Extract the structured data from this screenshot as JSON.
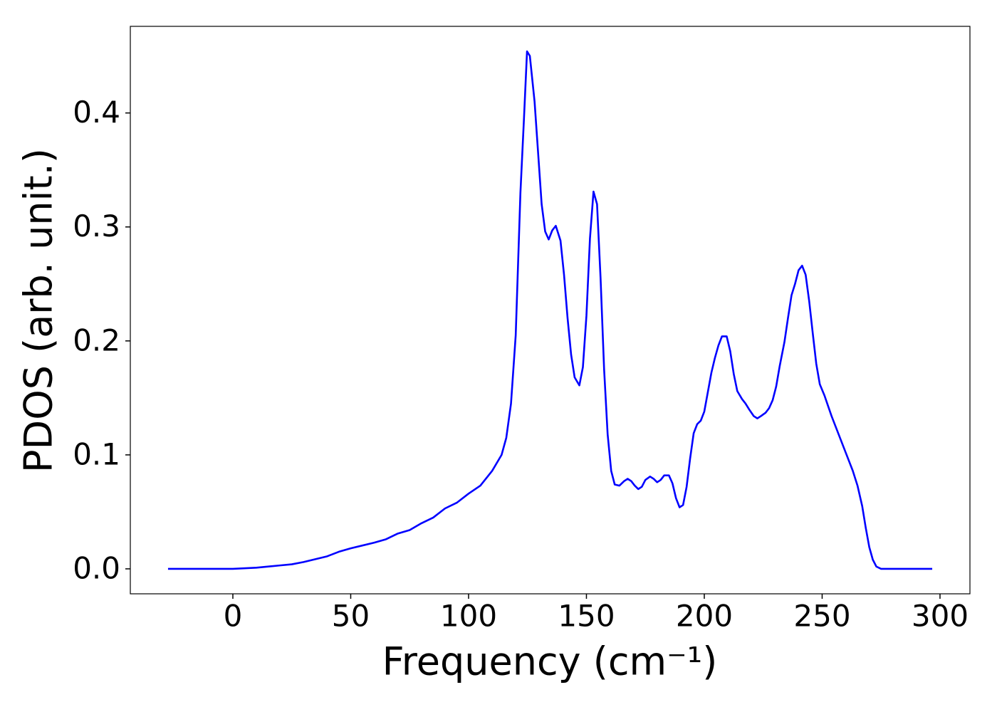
{
  "chart_data": {
    "type": "line",
    "xlabel": "Frequency (cm⁻¹)",
    "ylabel": "PDOS (arb. unit.)",
    "xlim": [
      -43.5,
      312.7
    ],
    "ylim": [
      -0.0219,
      0.476
    ],
    "xticks": [
      0,
      50,
      100,
      150,
      200,
      250,
      300
    ],
    "yticks": [
      {
        "value": 0,
        "label": "0.0"
      },
      0.1,
      0.2,
      0.3,
      0.4
    ],
    "grid": false,
    "x": [
      -27.5,
      0,
      10,
      20,
      25,
      30,
      40,
      45,
      50,
      60,
      65,
      70,
      75,
      80,
      85,
      90,
      95,
      100,
      105,
      110,
      114,
      116,
      118,
      120,
      122,
      123.5,
      124.8,
      126,
      128,
      129.5,
      131,
      132.5,
      134,
      135.5,
      137,
      139,
      140.5,
      142,
      143.5,
      145,
      147,
      148.5,
      150,
      151.5,
      153,
      154.5,
      156,
      157.5,
      159,
      160.5,
      162,
      164,
      166,
      167.5,
      169,
      170.5,
      172,
      173.5,
      175,
      177,
      178.5,
      180,
      181.5,
      183,
      185,
      186.5,
      188,
      189.5,
      191,
      192.5,
      194,
      195.5,
      197,
      198.5,
      200,
      201.5,
      203,
      204.5,
      206,
      207.5,
      209.5,
      211,
      212.5,
      214,
      216,
      217.5,
      219,
      221,
      222.5,
      224,
      226,
      227.5,
      229,
      230.5,
      232,
      234,
      235.5,
      237,
      238.5,
      240,
      241.5,
      243,
      244.5,
      246,
      247.5,
      249,
      251,
      252.5,
      254,
      257,
      260,
      263,
      265,
      267,
      268.5,
      270,
      271.5,
      273,
      275,
      296.7
    ],
    "series": [
      {
        "name": "PDOS",
        "color": "#0000ff",
        "values": [
          0,
          0,
          0.001,
          0.003,
          0.004,
          0.006,
          0.011,
          0.015,
          0.018,
          0.023,
          0.026,
          0.031,
          0.034,
          0.04,
          0.045,
          0.053,
          0.058,
          0.066,
          0.073,
          0.086,
          0.1,
          0.115,
          0.145,
          0.205,
          0.33,
          0.395,
          0.454,
          0.45,
          0.41,
          0.365,
          0.32,
          0.296,
          0.289,
          0.297,
          0.301,
          0.288,
          0.258,
          0.22,
          0.188,
          0.168,
          0.161,
          0.177,
          0.222,
          0.29,
          0.331,
          0.32,
          0.255,
          0.175,
          0.118,
          0.086,
          0.074,
          0.073,
          0.077,
          0.079,
          0.077,
          0.073,
          0.07,
          0.072,
          0.078,
          0.081,
          0.079,
          0.076,
          0.078,
          0.082,
          0.082,
          0.075,
          0.062,
          0.054,
          0.056,
          0.072,
          0.097,
          0.119,
          0.127,
          0.13,
          0.138,
          0.155,
          0.172,
          0.185,
          0.196,
          0.204,
          0.204,
          0.191,
          0.171,
          0.156,
          0.149,
          0.145,
          0.14,
          0.134,
          0.132,
          0.134,
          0.137,
          0.141,
          0.148,
          0.16,
          0.178,
          0.199,
          0.22,
          0.24,
          0.25,
          0.262,
          0.266,
          0.258,
          0.235,
          0.207,
          0.18,
          0.162,
          0.152,
          0.143,
          0.134,
          0.118,
          0.102,
          0.086,
          0.073,
          0.055,
          0.036,
          0.019,
          0.008,
          0.002,
          0,
          0
        ]
      }
    ]
  }
}
